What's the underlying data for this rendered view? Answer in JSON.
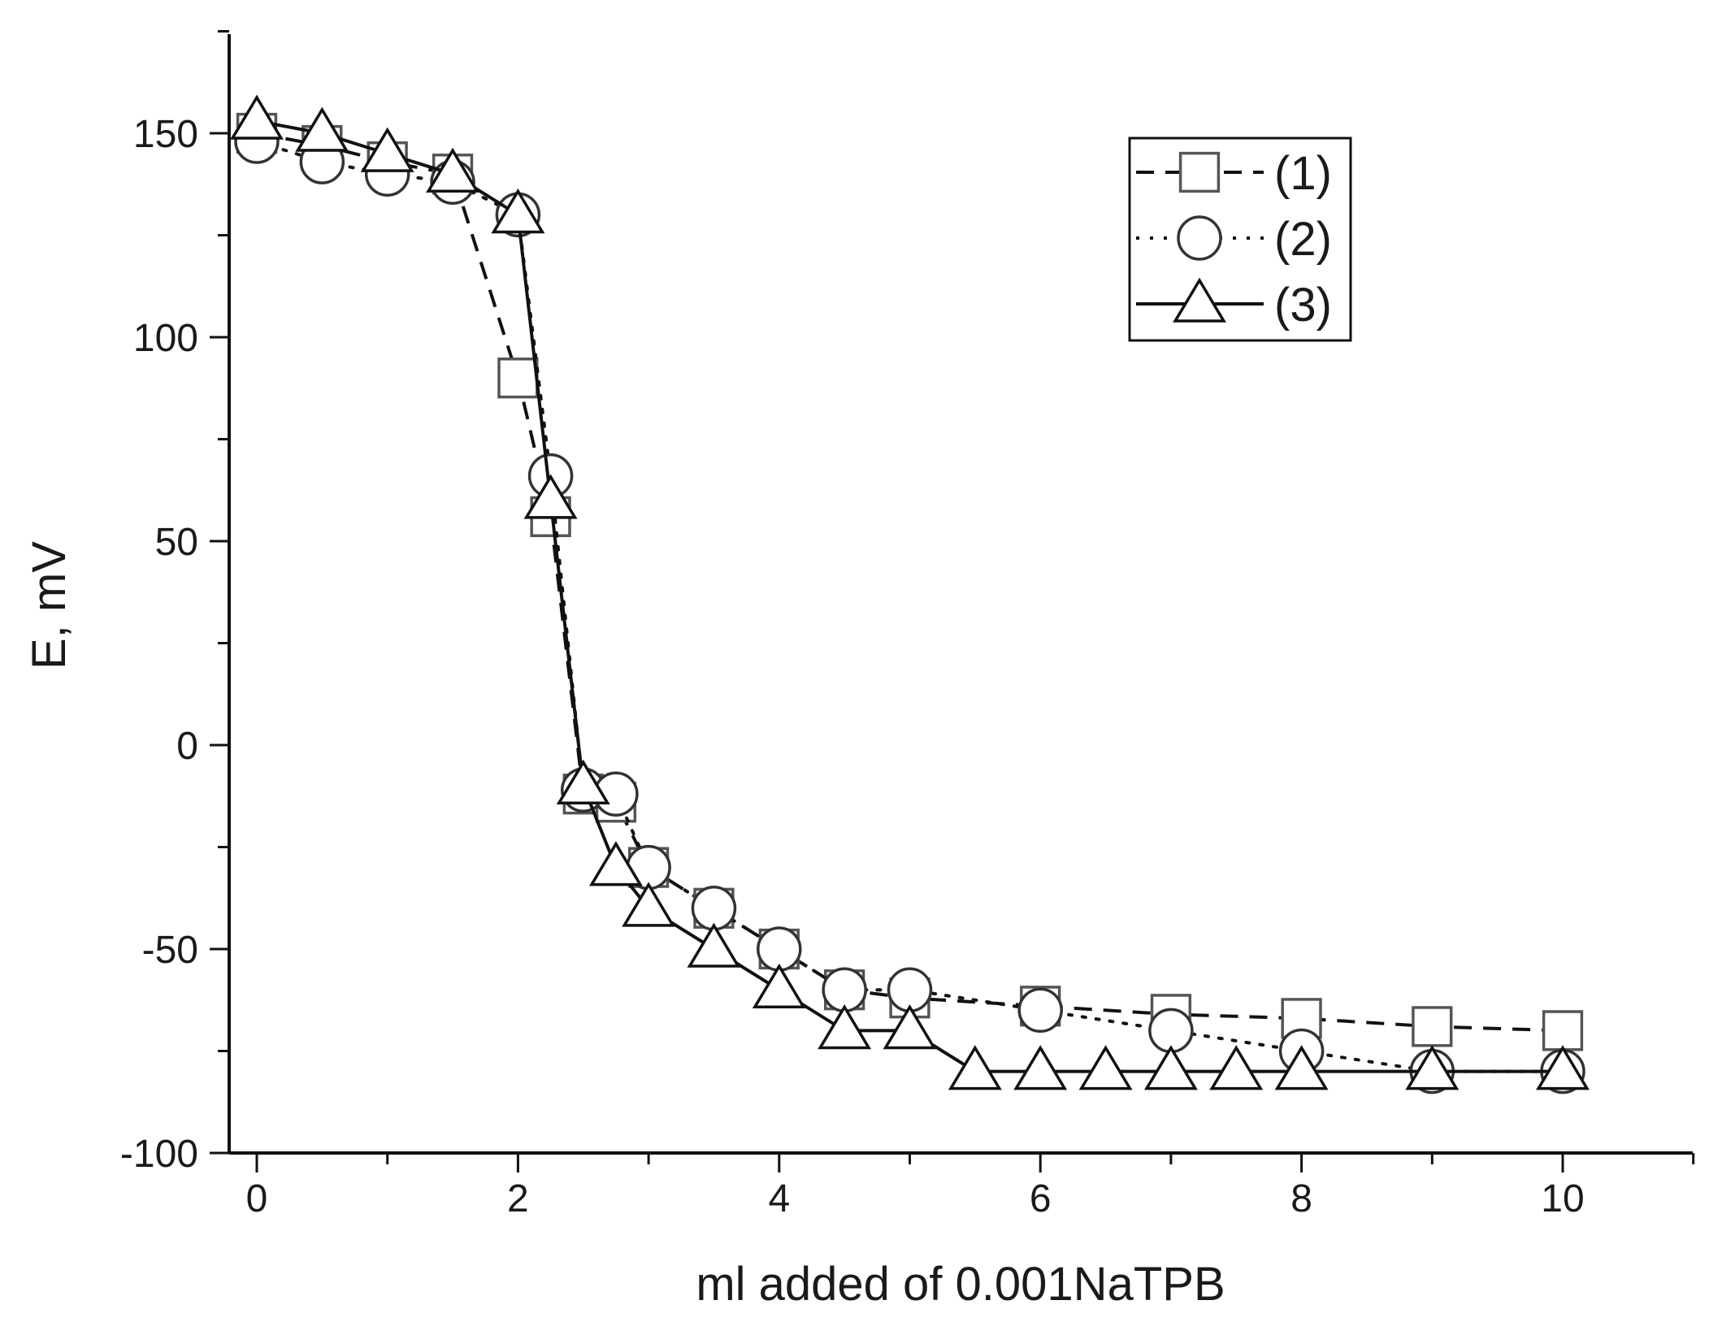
{
  "chart_data": {
    "type": "line",
    "title": "",
    "xlabel": "ml added of 0.001NaTPB",
    "ylabel": "E, mV",
    "xlim": [
      -0.2,
      11.0
    ],
    "ylim": [
      -100,
      175
    ],
    "xticks": [
      0,
      2,
      4,
      6,
      8,
      10
    ],
    "yticks": [
      -100,
      -50,
      0,
      50,
      100,
      150
    ],
    "grid": false,
    "legend_position": "top-right",
    "series": [
      {
        "name": "(1)",
        "marker": "square",
        "line_style": "dash",
        "color": "#111111",
        "x": [
          0,
          0.5,
          1,
          1.5,
          2,
          2.25,
          2.5,
          2.75,
          3,
          3.5,
          4,
          4.5,
          5,
          6,
          7,
          8,
          9,
          10
        ],
        "y": [
          150,
          147,
          143,
          140,
          90,
          56,
          -12,
          -14,
          -30,
          -40,
          -50,
          -60,
          -62,
          -64,
          -66,
          -67,
          -69,
          -70
        ]
      },
      {
        "name": "(2)",
        "marker": "circle",
        "line_style": "dot",
        "color": "#111111",
        "x": [
          0,
          0.5,
          1,
          1.5,
          2,
          2.25,
          2.5,
          2.75,
          3,
          3.5,
          4,
          4.5,
          5,
          6,
          7,
          8,
          9,
          10
        ],
        "y": [
          148,
          143,
          140,
          138,
          130,
          66,
          -11,
          -12,
          -30,
          -40,
          -50,
          -60,
          -60,
          -65,
          -70,
          -75,
          -80,
          -80
        ]
      },
      {
        "name": "(3)",
        "marker": "triangle",
        "line_style": "solid",
        "color": "#111111",
        "x": [
          0,
          0.5,
          1,
          1.5,
          2,
          2.25,
          2.5,
          2.75,
          3,
          3.5,
          4,
          4.5,
          5,
          5.5,
          6,
          6.5,
          7,
          7.5,
          8,
          9,
          10
        ],
        "y": [
          153,
          150,
          145,
          140,
          130,
          60,
          -10,
          -30,
          -40,
          -50,
          -60,
          -70,
          -70,
          -80,
          -80,
          -80,
          -80,
          -80,
          -80,
          -80,
          -80
        ]
      }
    ]
  }
}
